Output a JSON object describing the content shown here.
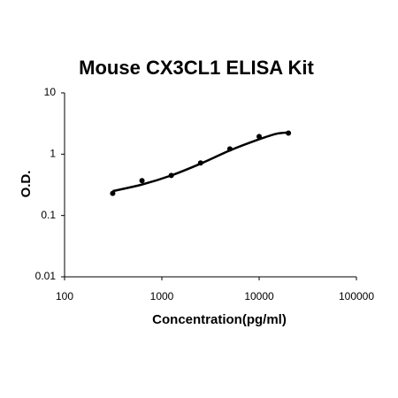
{
  "chart_data": {
    "type": "scatter",
    "title": "Mouse CX3CL1 ELISA Kit",
    "x_label": "Concentration(pg/ml)",
    "y_label": "O.D.",
    "x_scale": "log",
    "y_scale": "log",
    "xlim": [
      100,
      100000
    ],
    "xticks": [
      100,
      1000,
      10000,
      100000
    ],
    "ylim": [
      0.01,
      10
    ],
    "yticks": [
      0.01,
      0.1,
      1,
      10
    ],
    "color": "#000000",
    "x": [
      312.5,
      625,
      1250,
      2500,
      5000,
      10000,
      20000
    ],
    "values": [
      0.23,
      0.37,
      0.45,
      0.72,
      1.22,
      1.94,
      2.21
    ],
    "curve": {
      "x": [
        312.5,
        625,
        1250,
        2500,
        5000,
        10000,
        15000,
        20000
      ],
      "values": [
        0.25,
        0.32,
        0.45,
        0.7,
        1.15,
        1.75,
        2.15,
        2.25
      ]
    }
  }
}
